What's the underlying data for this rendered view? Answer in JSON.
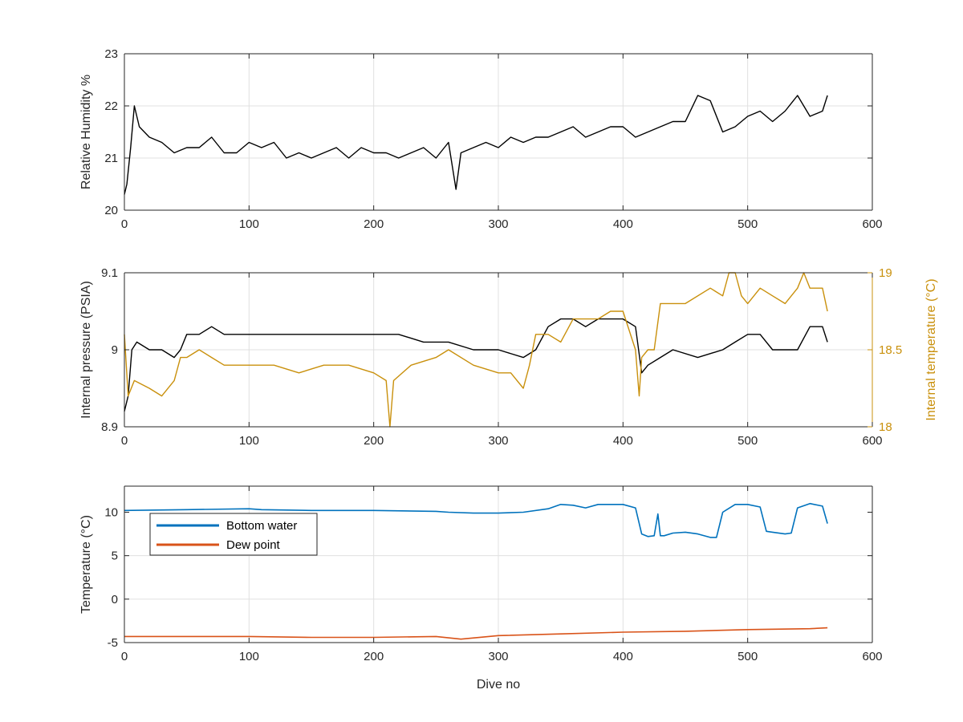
{
  "chart_data": [
    {
      "type": "line",
      "xlabel": "",
      "ylabel": "Relative Humidity %",
      "xlim": [
        0,
        600
      ],
      "ylim": [
        20,
        23
      ],
      "xticks": [
        0,
        100,
        200,
        300,
        400,
        500,
        600
      ],
      "yticks": [
        20,
        21,
        22,
        23
      ],
      "grid": true,
      "series": [
        {
          "color": "#000000",
          "x": [
            0,
            2,
            5,
            8,
            12,
            20,
            30,
            40,
            50,
            60,
            70,
            80,
            90,
            100,
            110,
            120,
            130,
            140,
            150,
            160,
            170,
            180,
            190,
            200,
            210,
            220,
            230,
            240,
            250,
            260,
            266,
            270,
            280,
            290,
            300,
            310,
            320,
            330,
            340,
            350,
            360,
            370,
            380,
            390,
            400,
            410,
            420,
            430,
            440,
            450,
            460,
            470,
            480,
            490,
            500,
            510,
            520,
            530,
            540,
            550,
            560,
            564
          ],
          "y": [
            20.3,
            20.5,
            21.2,
            22.0,
            21.6,
            21.4,
            21.3,
            21.1,
            21.2,
            21.2,
            21.4,
            21.1,
            21.1,
            21.3,
            21.2,
            21.3,
            21.0,
            21.1,
            21.0,
            21.1,
            21.2,
            21.0,
            21.2,
            21.1,
            21.1,
            21.0,
            21.1,
            21.2,
            21.0,
            21.3,
            20.4,
            21.1,
            21.2,
            21.3,
            21.2,
            21.4,
            21.3,
            21.4,
            21.4,
            21.5,
            21.6,
            21.4,
            21.5,
            21.6,
            21.6,
            21.4,
            21.5,
            21.6,
            21.7,
            21.7,
            22.2,
            22.1,
            21.5,
            21.6,
            21.8,
            21.9,
            21.7,
            21.9,
            22.2,
            21.8,
            21.9,
            22.2
          ]
        }
      ]
    },
    {
      "type": "line",
      "xlabel": "",
      "ylabel": "Internal pressure (PSIA)",
      "y2label": "Internal temperature (°C)",
      "xlim": [
        0,
        600
      ],
      "ylim": [
        8.9,
        9.1
      ],
      "y2lim": [
        18,
        19
      ],
      "xticks": [
        0,
        100,
        200,
        300,
        400,
        500,
        600
      ],
      "yticks": [
        8.9,
        9.0,
        9.1
      ],
      "ytick_labels": [
        "8.9",
        "9",
        "9.1"
      ],
      "y2ticks": [
        18,
        18.5,
        19
      ],
      "y2tick_labels": [
        "18",
        "18.5",
        "19"
      ],
      "grid": true,
      "series": [
        {
          "axis": "left",
          "color": "#000000",
          "x": [
            0,
            3,
            6,
            10,
            20,
            30,
            40,
            45,
            50,
            60,
            70,
            80,
            100,
            120,
            150,
            180,
            200,
            220,
            240,
            260,
            280,
            300,
            320,
            330,
            340,
            350,
            360,
            370,
            380,
            390,
            400,
            410,
            415,
            420,
            430,
            440,
            460,
            480,
            490,
            500,
            510,
            520,
            530,
            540,
            550,
            560,
            564
          ],
          "y": [
            8.92,
            8.94,
            9.0,
            9.01,
            9.0,
            9.0,
            8.99,
            9.0,
            9.02,
            9.02,
            9.03,
            9.02,
            9.02,
            9.02,
            9.02,
            9.02,
            9.02,
            9.02,
            9.01,
            9.01,
            9.0,
            9.0,
            8.99,
            9.0,
            9.03,
            9.04,
            9.04,
            9.03,
            9.04,
            9.04,
            9.04,
            9.03,
            8.97,
            8.98,
            8.99,
            9.0,
            8.99,
            9.0,
            9.01,
            9.02,
            9.02,
            9.0,
            9.0,
            9.0,
            9.03,
            9.03,
            9.01
          ]
        },
        {
          "axis": "right",
          "color": "#C9900C",
          "x": [
            0,
            3,
            8,
            20,
            30,
            40,
            45,
            50,
            60,
            70,
            80,
            100,
            120,
            140,
            160,
            180,
            200,
            210,
            213,
            216,
            230,
            250,
            260,
            280,
            300,
            310,
            320,
            325,
            330,
            340,
            350,
            360,
            380,
            390,
            400,
            410,
            413,
            415,
            420,
            425,
            430,
            440,
            450,
            470,
            480,
            485,
            490,
            495,
            500,
            510,
            520,
            530,
            540,
            545,
            550,
            560,
            564
          ],
          "y": [
            18.6,
            18.2,
            18.3,
            18.25,
            18.2,
            18.3,
            18.45,
            18.45,
            18.5,
            18.45,
            18.4,
            18.4,
            18.4,
            18.35,
            18.4,
            18.4,
            18.35,
            18.3,
            18.0,
            18.3,
            18.4,
            18.45,
            18.5,
            18.4,
            18.35,
            18.35,
            18.25,
            18.4,
            18.6,
            18.6,
            18.55,
            18.7,
            18.7,
            18.75,
            18.75,
            18.5,
            18.2,
            18.45,
            18.5,
            18.5,
            18.8,
            18.8,
            18.8,
            18.9,
            18.85,
            19.0,
            19.0,
            18.85,
            18.8,
            18.9,
            18.85,
            18.8,
            18.9,
            19.0,
            18.9,
            18.9,
            18.75
          ]
        }
      ]
    },
    {
      "type": "line",
      "xlabel": "Dive no",
      "ylabel": "Temperature (°C)",
      "xlim": [
        0,
        600
      ],
      "ylim": [
        -5,
        13
      ],
      "xticks": [
        0,
        100,
        200,
        300,
        400,
        500,
        600
      ],
      "yticks": [
        -5,
        0,
        5,
        10
      ],
      "grid": true,
      "legend": "top-left",
      "series": [
        {
          "name": "Bottom water",
          "color": "#0072BD",
          "x": [
            0,
            50,
            100,
            110,
            150,
            200,
            250,
            260,
            280,
            300,
            320,
            340,
            350,
            360,
            370,
            380,
            390,
            400,
            410,
            415,
            420,
            425,
            428,
            430,
            433,
            440,
            450,
            460,
            470,
            475,
            480,
            490,
            500,
            510,
            515,
            520,
            530,
            535,
            540,
            550,
            560,
            564
          ],
          "y": [
            10.2,
            10.3,
            10.4,
            10.3,
            10.2,
            10.2,
            10.1,
            10.0,
            9.9,
            9.9,
            10.0,
            10.4,
            10.9,
            10.8,
            10.5,
            10.9,
            10.9,
            10.9,
            10.5,
            7.5,
            7.2,
            7.3,
            9.8,
            7.3,
            7.3,
            7.6,
            7.7,
            7.5,
            7.1,
            7.1,
            10.0,
            10.9,
            10.9,
            10.6,
            7.8,
            7.7,
            7.5,
            7.6,
            10.5,
            11.0,
            10.7,
            8.7
          ]
        },
        {
          "name": "Dew point",
          "color": "#D95319",
          "x": [
            0,
            50,
            100,
            150,
            200,
            250,
            270,
            300,
            350,
            400,
            450,
            500,
            550,
            564
          ],
          "y": [
            -4.3,
            -4.3,
            -4.3,
            -4.4,
            -4.4,
            -4.3,
            -4.6,
            -4.2,
            -4.0,
            -3.8,
            -3.7,
            -3.5,
            -3.4,
            -3.3
          ]
        }
      ]
    }
  ]
}
